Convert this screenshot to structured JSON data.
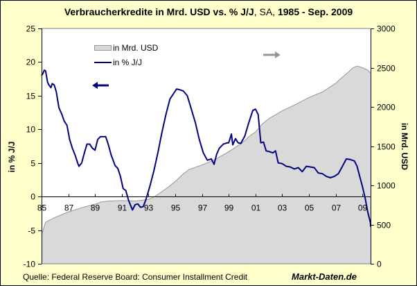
{
  "chart_data": {
    "type": "line+area",
    "title": "Verbraucherkredite in Mrd. USD vs. % J/J",
    "title_suffix_normal": ", SA,",
    "title_suffix_bold": " 1985 - Sep. 2009",
    "ylabel_left": "in % J/J",
    "ylabel_right": "in Mrd. USD",
    "ylim_left": [
      -10,
      25
    ],
    "ylim_right": [
      0,
      3000
    ],
    "yticks_left": [
      "25",
      "20",
      "15",
      "10",
      "5",
      "0",
      "-5",
      "-10"
    ],
    "yticks_left_values": [
      25,
      20,
      15,
      10,
      5,
      0,
      -5,
      -10
    ],
    "yticks_right": [
      "3000",
      "2500",
      "2000",
      "1500",
      "1000",
      "500",
      "0"
    ],
    "yticks_right_values": [
      3000,
      2500,
      2000,
      1500,
      1000,
      500,
      0
    ],
    "xlim": [
      1985.0,
      2009.75
    ],
    "xticks": [
      "85",
      "87",
      "89",
      "91",
      "93",
      "95",
      "97",
      "99",
      "01",
      "03",
      "05",
      "07",
      "09"
    ],
    "xticks_values": [
      1985,
      1987,
      1989,
      1991,
      1993,
      1995,
      1997,
      1999,
      2001,
      2003,
      2005,
      2007,
      2009
    ],
    "grid": false,
    "legend_position": "top-left",
    "series": [
      {
        "name": "in Mrd. USD",
        "axis": "right",
        "kind": "area",
        "color": "#d9d9d9",
        "edge_color": "#969696",
        "x": [
          1985.0,
          1985.3,
          1986.0,
          1987.0,
          1988.0,
          1989.0,
          1989.5,
          1990.0,
          1991.0,
          1992.0,
          1993.0,
          1993.5,
          1994.0,
          1994.5,
          1995.0,
          1995.5,
          1996.0,
          1997.0,
          1998.0,
          1999.0,
          2000.0,
          2000.5,
          2001.0,
          2001.5,
          2002.0,
          2003.0,
          2004.0,
          2005.0,
          2006.0,
          2007.0,
          2007.5,
          2008.0,
          2008.3,
          2008.6,
          2009.0,
          2009.4,
          2009.75
        ],
        "values": [
          360,
          530,
          590,
          660,
          715,
          760,
          790,
          800,
          805,
          800,
          820,
          860,
          920,
          980,
          1050,
          1130,
          1200,
          1260,
          1330,
          1430,
          1540,
          1620,
          1680,
          1780,
          1850,
          1950,
          2030,
          2120,
          2190,
          2300,
          2380,
          2450,
          2500,
          2520,
          2500,
          2470,
          2430
        ]
      },
      {
        "name": "in % J/J",
        "axis": "left",
        "kind": "line",
        "color": "#000080",
        "x": [
          1985.0,
          1985.1,
          1985.2,
          1985.3,
          1985.45,
          1985.55,
          1985.7,
          1985.8,
          1985.95,
          1986.1,
          1986.3,
          1986.5,
          1986.7,
          1986.9,
          1987.1,
          1987.3,
          1987.5,
          1987.7,
          1987.8,
          1988.0,
          1988.2,
          1988.4,
          1988.6,
          1988.8,
          1989.0,
          1989.2,
          1989.4,
          1989.6,
          1989.8,
          1990.0,
          1990.2,
          1990.5,
          1990.7,
          1990.9,
          1991.1,
          1991.3,
          1991.5,
          1991.8,
          1992.0,
          1992.2,
          1992.4,
          1992.6,
          1992.8,
          1993.1,
          1993.4,
          1993.7,
          1994.0,
          1994.3,
          1994.6,
          1994.9,
          1995.1,
          1995.3,
          1995.6,
          1995.9,
          1996.2,
          1996.5,
          1996.8,
          1997.1,
          1997.4,
          1997.7,
          1997.9,
          1998.1,
          1998.3,
          1998.6,
          1998.9,
          1999.0,
          1999.2,
          1999.3,
          1999.5,
          1999.7,
          1999.9,
          2000.2,
          2000.5,
          2000.8,
          2001.0,
          2001.2,
          2001.4,
          2001.6,
          2001.8,
          2002.0,
          2002.3,
          2002.5,
          2002.7,
          2003.0,
          2003.3,
          2003.6,
          2003.9,
          2004.2,
          2004.5,
          2004.8,
          2005.1,
          2005.4,
          2005.7,
          2006.0,
          2006.3,
          2006.6,
          2006.9,
          2007.2,
          2007.5,
          2007.8,
          2008.1,
          2008.4,
          2008.6,
          2008.8,
          2009.0,
          2009.2,
          2009.4,
          2009.6,
          2009.75
        ],
        "values": [
          18.0,
          18.3,
          18.8,
          18.7,
          17.0,
          16.6,
          16.2,
          16.8,
          16.6,
          15.6,
          13.2,
          12.3,
          11.2,
          10.6,
          8.5,
          7.2,
          6.2,
          5.0,
          4.5,
          5.0,
          6.5,
          7.8,
          7.8,
          7.2,
          6.9,
          8.5,
          8.9,
          8.9,
          8.9,
          7.7,
          6.2,
          4.6,
          4.2,
          3.0,
          1.2,
          0.9,
          -0.5,
          -2.0,
          -1.2,
          -1.1,
          -1.6,
          -1.5,
          -0.5,
          1.5,
          3.8,
          6.5,
          9.5,
          12.2,
          14.5,
          15.4,
          16.0,
          15.9,
          15.7,
          15.0,
          13.0,
          11.0,
          8.5,
          6.5,
          5.4,
          5.6,
          4.8,
          6.3,
          7.2,
          7.8,
          8.0,
          8.0,
          9.3,
          7.7,
          8.6,
          8.0,
          7.9,
          9.0,
          11.0,
          12.8,
          13.0,
          12.2,
          8.0,
          8.1,
          6.8,
          6.7,
          6.5,
          6.8,
          5.0,
          4.9,
          4.5,
          4.4,
          4.1,
          4.3,
          3.7,
          4.5,
          4.4,
          4.3,
          3.5,
          3.4,
          3.0,
          2.8,
          3.0,
          3.4,
          4.5,
          5.6,
          5.5,
          5.3,
          4.5,
          3.0,
          1.5,
          -0.2,
          -2.3,
          -3.9,
          -4.5
        ]
      }
    ],
    "arrows": [
      {
        "direction": "left",
        "color": "#000080",
        "meaning": "left-axis series"
      },
      {
        "direction": "right",
        "color": "#969696",
        "meaning": "right-axis series"
      }
    ]
  },
  "footer": {
    "source": "Quelle: Federal Reserve Board: Consumer Installment Credit",
    "brand": "Markt-Daten.de"
  }
}
